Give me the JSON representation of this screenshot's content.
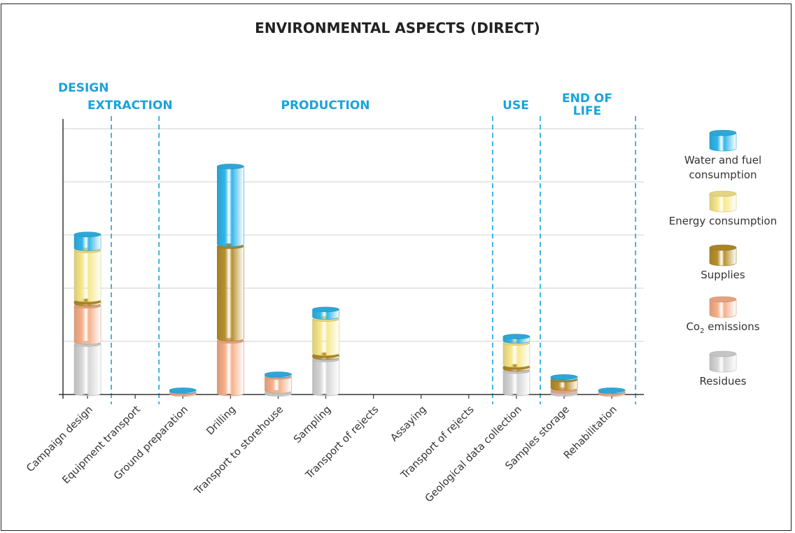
{
  "chart_data": {
    "type": "bar",
    "stacked": true,
    "title": "ENVIRONMENTAL ASPECTS (DIRECT)",
    "phases": [
      {
        "label": "DESIGN",
        "span": [
          0,
          0
        ]
      },
      {
        "label": "EXTRACTION",
        "span": [
          1,
          1
        ]
      },
      {
        "label": "PRODUCTION",
        "span": [
          2,
          8
        ]
      },
      {
        "label": "USE",
        "span": [
          9,
          9
        ]
      },
      {
        "label": "END OF LIFE",
        "span": [
          10,
          11
        ]
      }
    ],
    "categories": [
      "Campaign design",
      "Equipment transport",
      "Ground preparation",
      "Drilling",
      "Transport to storehouse",
      "Sampling",
      "Transport of rejects",
      "Assaying",
      "Transport of rejects",
      "Geological data collection",
      "Samples storage",
      "Rehabilitation"
    ],
    "ylim": [
      0,
      5
    ],
    "grid": true,
    "legend_position": "right",
    "series": [
      {
        "name": "Residues",
        "color": "#d6d6d6",
        "values": [
          0.97,
          0,
          0,
          0,
          0.05,
          0.68,
          0,
          0,
          0,
          0.46,
          0.05,
          0
        ]
      },
      {
        "name": "Co₂ emissions",
        "color": "#f7b08a",
        "values": [
          0.72,
          0,
          0.05,
          1.03,
          0.3,
          0,
          0,
          0,
          0,
          0,
          0.05,
          0.05
        ]
      },
      {
        "name": "Supplies",
        "color": "#b8902d",
        "values": [
          0.08,
          0,
          0,
          1.78,
          0,
          0.08,
          0,
          0,
          0,
          0.08,
          0.2,
          0
        ]
      },
      {
        "name": "Energy consumption",
        "color": "#f7e88c",
        "values": [
          0.96,
          0,
          0,
          0,
          0,
          0.68,
          0,
          0,
          0,
          0.45,
          0,
          0
        ]
      },
      {
        "name": "Water and fuel consumption",
        "color": "#31b6ea",
        "values": [
          0.3,
          0,
          0.05,
          1.5,
          0.05,
          0.18,
          0,
          0,
          0,
          0.12,
          0.05,
          0.05
        ]
      }
    ]
  }
}
